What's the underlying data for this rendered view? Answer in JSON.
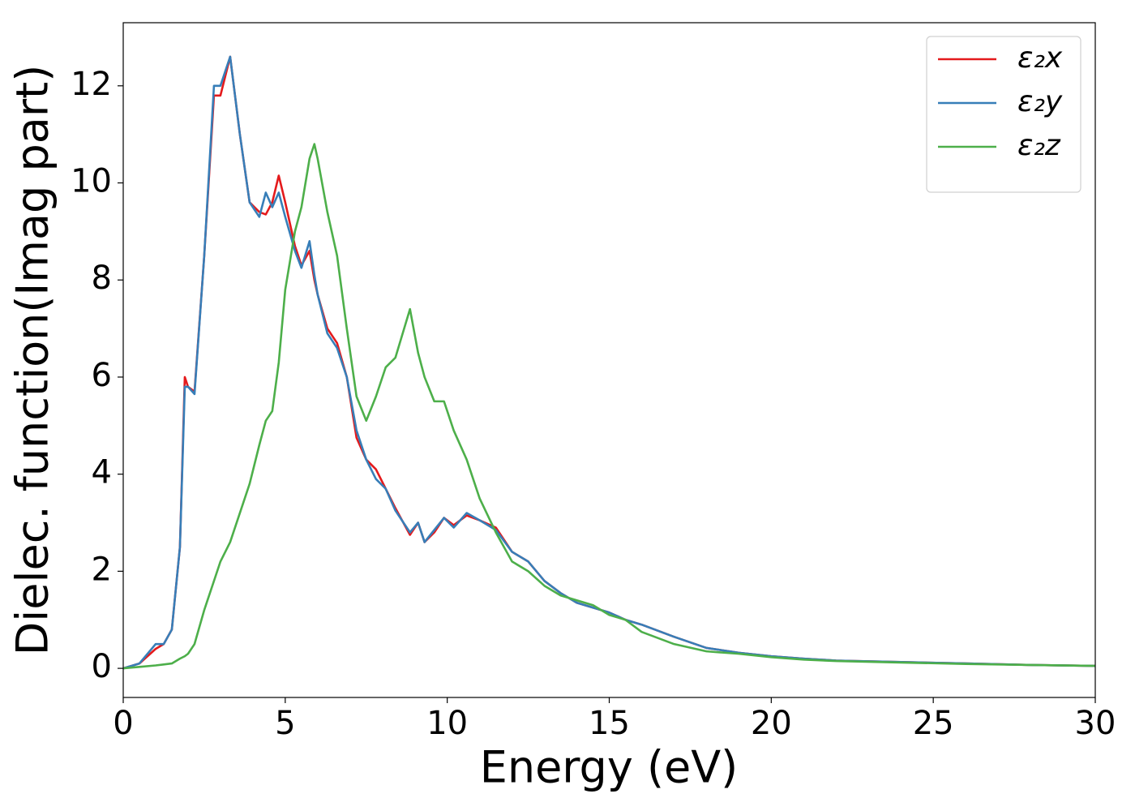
{
  "chart_data": {
    "type": "line",
    "xlabel": "Energy (eV)",
    "ylabel": "Dielec. function(Imag part)",
    "x": [
      0,
      0.5,
      1,
      1.25,
      1.5,
      1.75,
      1.9,
      2,
      2.2,
      2.5,
      2.8,
      3,
      3.3,
      3.6,
      3.9,
      4.2,
      4.4,
      4.6,
      4.8,
      5,
      5.3,
      5.5,
      5.75,
      5.9,
      6,
      6.3,
      6.6,
      6.9,
      7.2,
      7.5,
      7.8,
      8.1,
      8.4,
      8.85,
      9.1,
      9.3,
      9.6,
      9.9,
      10.2,
      10.6,
      11,
      11.5,
      12,
      12.5,
      13,
      13.5,
      14,
      14.5,
      15,
      15.5,
      16,
      17,
      18,
      19,
      20,
      21,
      22,
      24,
      26,
      28,
      30
    ],
    "series": [
      {
        "name": "ε₂x",
        "color": "#e41a1c",
        "values": [
          0,
          0.1,
          0.4,
          0.5,
          0.8,
          2.5,
          6.0,
          5.8,
          5.7,
          8.5,
          11.8,
          11.8,
          12.6,
          11,
          9.6,
          9.4,
          9.35,
          9.6,
          10.15,
          9.6,
          8.7,
          8.3,
          8.6,
          8.0,
          7.7,
          7.0,
          6.7,
          6.0,
          4.75,
          4.3,
          4.1,
          3.7,
          3.3,
          2.75,
          3.0,
          2.6,
          2.8,
          3.1,
          2.95,
          3.15,
          3.05,
          2.9,
          2.4,
          2.2,
          1.8,
          1.55,
          1.35,
          1.25,
          1.15,
          1.0,
          0.9,
          0.65,
          0.42,
          0.32,
          0.25,
          0.2,
          0.16,
          0.13,
          0.1,
          0.07,
          0.05
        ]
      },
      {
        "name": "ε₂y",
        "color": "#377eb8",
        "values": [
          0,
          0.1,
          0.5,
          0.5,
          0.8,
          2.5,
          5.8,
          5.8,
          5.65,
          8.5,
          12.0,
          12.0,
          12.6,
          11,
          9.6,
          9.3,
          9.8,
          9.5,
          9.8,
          9.3,
          8.6,
          8.25,
          8.8,
          8.1,
          7.7,
          6.9,
          6.6,
          6.0,
          4.9,
          4.3,
          3.9,
          3.7,
          3.25,
          2.8,
          3.0,
          2.6,
          2.85,
          3.1,
          2.9,
          3.2,
          3.05,
          2.85,
          2.4,
          2.2,
          1.8,
          1.55,
          1.35,
          1.25,
          1.15,
          1.0,
          0.9,
          0.65,
          0.42,
          0.32,
          0.25,
          0.2,
          0.16,
          0.13,
          0.1,
          0.07,
          0.05
        ]
      },
      {
        "name": "ε₂z",
        "color": "#4daf4a",
        "values": [
          0,
          0.03,
          0.06,
          0.08,
          0.1,
          0.2,
          0.25,
          0.3,
          0.5,
          1.2,
          1.8,
          2.2,
          2.6,
          3.2,
          3.8,
          4.6,
          5.1,
          5.3,
          6.3,
          7.8,
          9.0,
          9.5,
          10.5,
          10.8,
          10.5,
          9.4,
          8.5,
          7.0,
          5.6,
          5.1,
          5.6,
          6.2,
          6.4,
          7.4,
          6.5,
          6.0,
          5.5,
          5.5,
          4.9,
          4.3,
          3.5,
          2.8,
          2.2,
          2.0,
          1.7,
          1.5,
          1.4,
          1.3,
          1.1,
          1.0,
          0.75,
          0.5,
          0.35,
          0.3,
          0.23,
          0.18,
          0.15,
          0.12,
          0.09,
          0.07,
          0.05
        ]
      }
    ],
    "xlim": [
      0,
      30
    ],
    "xticks": [
      0,
      5,
      10,
      15,
      20,
      25,
      30
    ],
    "ylim": [
      -0.6,
      13.3
    ],
    "yticks": [
      0,
      2,
      4,
      6,
      8,
      10,
      12
    ],
    "grid": false,
    "legend": "upper right"
  }
}
